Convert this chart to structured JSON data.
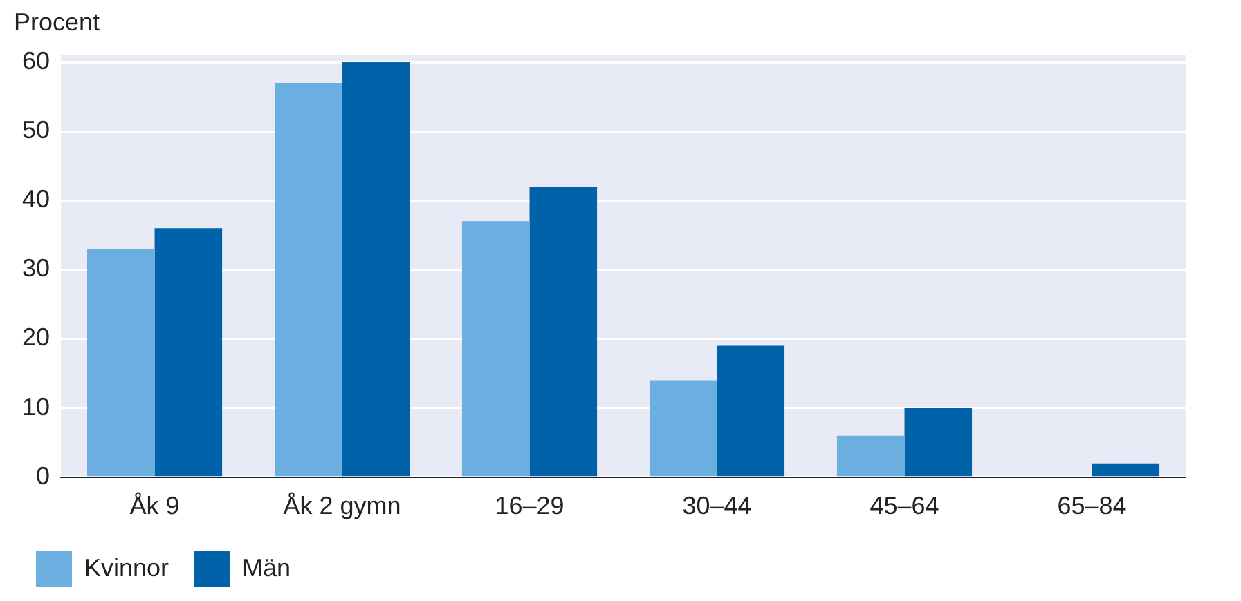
{
  "chart_data": {
    "type": "bar",
    "ylabel": "Procent",
    "categories": [
      "Åk 9",
      "Åk 2 gymn",
      "16–29",
      "30–44",
      "45–64",
      "65–84"
    ],
    "series": [
      {
        "name": "Kvinnor",
        "color": "#6aafe0",
        "values": [
          33,
          57,
          37,
          14,
          6,
          0
        ]
      },
      {
        "name": "Män",
        "color": "#0062a8",
        "values": [
          36,
          60,
          42,
          19,
          10,
          2
        ]
      }
    ],
    "ylim": [
      0,
      61
    ],
    "yticks": [
      0,
      10,
      20,
      30,
      40,
      50,
      60
    ],
    "grid": "y",
    "legend": "bottom left"
  }
}
